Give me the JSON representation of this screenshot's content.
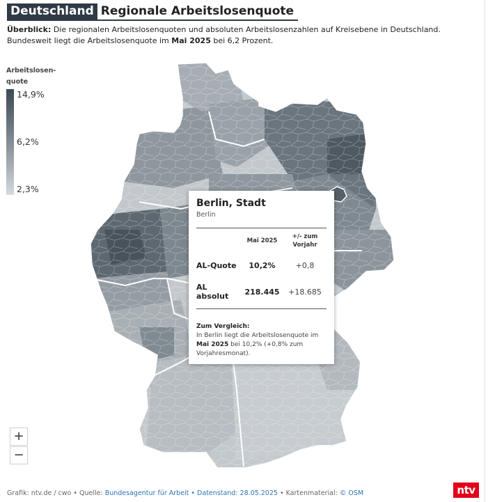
{
  "title": {
    "tag": "Deutschland",
    "main": "Regionale Arbeitslosenquote"
  },
  "intro": {
    "label": "Überblick:",
    "text1": " Die regionalen Arbeitslosenquoten und absoluten Arbeitslosenzahlen auf Kreisebene in Deutschland. Bundesweit liegt die Arbeitslosenquote im ",
    "month": "Mai 2025",
    "text2": " bei 6,2 Prozent."
  },
  "legend": {
    "title": "Arbeitslosen-quote",
    "max": "14,9%",
    "mid": "6,2%",
    "min": "2,3%",
    "colors": {
      "high": "#3e4a53",
      "mid": "#6c7780",
      "low": "#d6dadd"
    }
  },
  "zoom": {
    "in": "+",
    "out": "−"
  },
  "tooltip": {
    "region": "Berlin, Stadt",
    "state": "Berlin",
    "col1": "Mai 2025",
    "col2": "+/- zum Vorjahr",
    "rows": [
      {
        "label": "AL-Quote",
        "value": "10,2%",
        "change": "+0,8"
      },
      {
        "label": "AL absolut",
        "value": "218.445",
        "change": "+18.685"
      }
    ],
    "compare_head": "Zum Vergleich:",
    "compare_t1": "In Berlin liegt die Arbeitslosenquote im ",
    "compare_month": "Mai 2025",
    "compare_t2": " bei 10,2% (+0,8% zum Vorjahresmonat)."
  },
  "footer": {
    "prefix": "Grafik: ntv.de / cwo • Quelle: ",
    "source": "Bundesagentur für Arbeit • Datenstand: 28.05.2025",
    "mid": " • Kartenmaterial: ",
    "osm": "© OSM"
  },
  "logo": "ntv",
  "colors": {
    "accent": "#2f3a44",
    "brand": "#e3001b",
    "link": "#2b73b8",
    "highlight_region": "#556068"
  }
}
